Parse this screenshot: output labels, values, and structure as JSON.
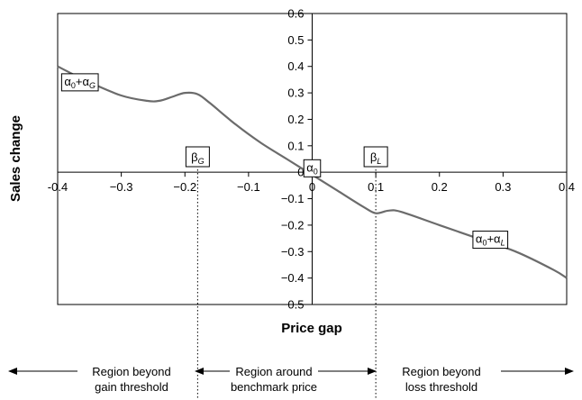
{
  "chart_data": {
    "type": "line",
    "xlabel": "Price gap",
    "ylabel": "Sales change",
    "xlim": [
      -0.4,
      0.4
    ],
    "ylim": [
      -0.5,
      0.6
    ],
    "x_ticks": [
      -0.4,
      -0.3,
      -0.2,
      -0.1,
      0,
      0.1,
      0.2,
      0.3,
      0.4
    ],
    "x_tick_labels": [
      "-0.4",
      "−0.3",
      "−0.2",
      "−0.1",
      "0",
      "0.1",
      "0.2",
      "0.3",
      "0.4"
    ],
    "y_ticks": [
      -0.5,
      -0.4,
      -0.3,
      -0.2,
      -0.1,
      0,
      0.1,
      0.2,
      0.3,
      0.4,
      0.5,
      0.6
    ],
    "y_tick_labels": [
      "−0.5",
      "−0.4",
      "−0.3",
      "−0.2",
      "−0.1",
      "0",
      "0.1",
      "0.2",
      "0.3",
      "0.4",
      "0.5",
      "0.6"
    ],
    "grid": false,
    "series": [
      {
        "x": [
          -0.4,
          -0.35,
          -0.3,
          -0.26,
          -0.24,
          -0.22,
          -0.2,
          -0.18,
          -0.16,
          -0.12,
          -0.08,
          -0.04,
          0,
          0.04,
          0.08,
          0.1,
          0.12,
          0.14,
          0.2,
          0.26,
          0.32,
          0.38,
          0.4
        ],
        "y": [
          0.4,
          0.34,
          0.29,
          0.27,
          0.27,
          0.285,
          0.3,
          0.295,
          0.26,
          0.18,
          0.11,
          0.05,
          -0.01,
          -0.07,
          -0.13,
          -0.155,
          -0.145,
          -0.15,
          -0.2,
          -0.25,
          -0.3,
          -0.37,
          -0.4
        ],
        "color": "#6b6b6b"
      }
    ],
    "thresholds": [
      {
        "label": "β",
        "subscript": "G",
        "x": -0.18
      },
      {
        "label": "β",
        "subscript": "L",
        "x": 0.1
      }
    ],
    "annotations": [
      {
        "label": "α",
        "sub1": "0",
        "plus": "+",
        "label2": "α",
        "sub2": "G",
        "x": -0.365,
        "y": 0.345
      },
      {
        "label": "α",
        "sub1": "0",
        "x": 0,
        "y": 0.02
      },
      {
        "label": "α",
        "sub1": "0",
        "plus": "+",
        "label2": "α",
        "sub2": "L",
        "x": 0.28,
        "y": -0.25
      }
    ],
    "regions": [
      {
        "line1": "Region beyond",
        "line2": "gain threshold"
      },
      {
        "line1": "Region around",
        "line2": "benchmark price"
      },
      {
        "line1": "Region beyond",
        "line2": "loss threshold"
      }
    ]
  }
}
